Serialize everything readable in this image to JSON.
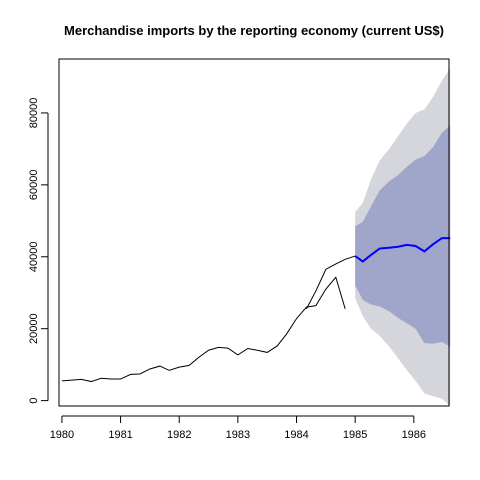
{
  "chart_data": {
    "type": "line",
    "title": "Merchandise imports by the reporting economy (current US$)",
    "xlabel": "",
    "ylabel": "",
    "xlim": [
      1979.95,
      1986.6
    ],
    "ylim": [
      -1500,
      95000
    ],
    "x_ticks": [
      1980,
      1981,
      1982,
      1983,
      1984,
      1985,
      1986
    ],
    "x_tick_labels": [
      "1980",
      "1981",
      "1982",
      "1983",
      "1984",
      "1985",
      "1986"
    ],
    "y_ticks": [
      0,
      20000,
      40000,
      60000,
      80000
    ],
    "y_tick_labels": [
      "0",
      "20000",
      "40000",
      "60000",
      "80000"
    ],
    "grid": false,
    "legend": "none",
    "colors": {
      "history": "#000000",
      "forecast": "#0000ff",
      "band_80": "#a0a5ca",
      "band_95": "#d5d5dc"
    },
    "history": {
      "x": [
        1980.0,
        1980.17,
        1980.33,
        1980.5,
        1980.67,
        1980.83,
        1981.0,
        1981.17,
        1981.33,
        1981.5,
        1981.67,
        1981.83,
        1982.0,
        1982.17,
        1982.33,
        1982.5,
        1982.67,
        1982.83,
        1983.0,
        1983.17,
        1983.33,
        1983.5,
        1983.67,
        1983.83,
        1984.0,
        1984.17,
        1984.33,
        1984.5,
        1984.67,
        1984.83
      ],
      "values": [
        5500,
        5700,
        5900,
        5300,
        6200,
        6000,
        6000,
        7300,
        7400,
        8800,
        9600,
        8400,
        9300,
        9800,
        12000,
        14000,
        14800,
        14600,
        12700,
        14500,
        14000,
        13400,
        15200,
        18500,
        22800,
        26000,
        26400,
        31000,
        34300,
        25500
      ]
    },
    "history_tail": {
      "x": [
        1984.17,
        1984.33,
        1984.5,
        1984.67,
        1984.83,
        1985.0
      ],
      "values": [
        25500,
        30500,
        36500,
        38000,
        39300,
        40200
      ]
    },
    "forecast": {
      "x": [
        1985.0,
        1985.13,
        1985.27,
        1985.42,
        1985.58,
        1985.73,
        1985.88,
        1986.03,
        1986.18,
        1986.33,
        1986.48,
        1986.62
      ],
      "values": [
        40200,
        38700,
        40500,
        42300,
        42500,
        42800,
        43300,
        43000,
        41500,
        43500,
        45200,
        45200
      ],
      "lower_80": [
        32000,
        28000,
        26700,
        26200,
        24800,
        23000,
        21500,
        20000,
        16000,
        15800,
        16300,
        15000
      ],
      "upper_80": [
        48500,
        49700,
        54000,
        58500,
        61000,
        62700,
        65000,
        67000,
        68000,
        70500,
        74500,
        76500
      ],
      "lower_95": [
        28500,
        23500,
        20000,
        18000,
        15000,
        11800,
        8500,
        5500,
        2000,
        1200,
        500,
        -1500
      ],
      "upper_95": [
        52500,
        55000,
        61500,
        66800,
        70000,
        73500,
        77000,
        80000,
        81000,
        84500,
        89000,
        92500
      ]
    }
  }
}
